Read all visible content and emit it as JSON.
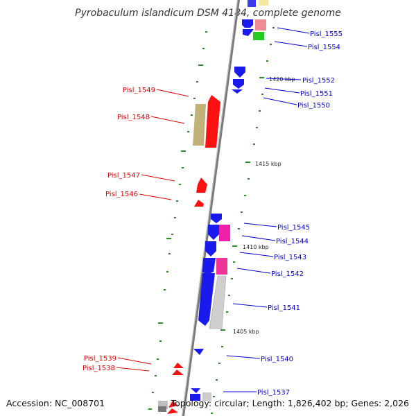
{
  "map": {
    "title": "Pyrobaculum islandicum DSM 4184, complete genome",
    "accession": "Accession: NC_008701",
    "summary": "Topology: circular; Length: 1,826,402 bp; Genes: 2,026",
    "colors": {
      "forward_label": "#0000cc",
      "reverse_label": "#dd0000",
      "backbone": "#808080",
      "tick": "#2e8b2e"
    }
  },
  "scale_labels": [
    "1420 kbp",
    "1415 kbp",
    "1410 kbp",
    "1405 kbp"
  ],
  "labels_right": [
    "Pisl_1555",
    "Pisl_1554",
    "Pisl_1552",
    "Pisl_1551",
    "Pisl_1550",
    "Pisl_1545",
    "Pisl_1544",
    "Pisl_1543",
    "Pisl_1542",
    "Pisl_1541",
    "Pisl_1540",
    "Pisl_1537"
  ],
  "labels_left": [
    "Pisl_1549",
    "Pisl_1548",
    "Pisl_1547",
    "Pisl_1546",
    "Pisl_1539",
    "Pisl_1538"
  ]
}
